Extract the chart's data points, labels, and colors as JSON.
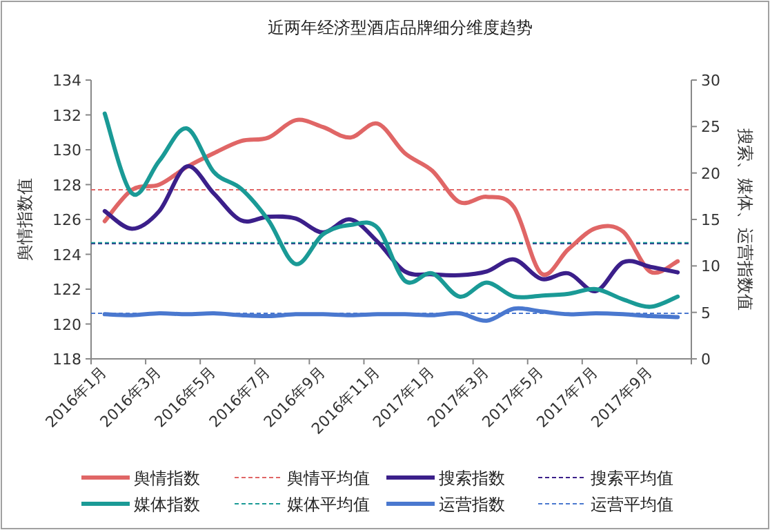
{
  "chart_data": {
    "type": "line",
    "title": "近两年经济型酒店品牌细分维度趋势",
    "ylabel": "舆情指数值",
    "y2label": "搜索、媒体、运营指数值",
    "categories": [
      "2016年1月",
      null,
      "2016年3月",
      null,
      "2016年5月",
      null,
      "2016年7月",
      null,
      "2016年9月",
      null,
      "2016年11月",
      null,
      "2017年1月",
      null,
      "2017年3月",
      null,
      "2017年5月",
      null,
      "2017年7月",
      null,
      "2017年9月",
      null
    ],
    "series": [
      {
        "name": "舆情指数",
        "color": "#e06666",
        "values": [
          125.9,
          127.7,
          128.0,
          129.0,
          129.8,
          130.5,
          130.7,
          131.7,
          131.3,
          130.7,
          131.5,
          129.8,
          128.8,
          127.0,
          127.3,
          126.7,
          122.9,
          124.3,
          125.5,
          125.3,
          123.0,
          123.6
        ]
      },
      {
        "name": "搜索指数",
        "color": "#3b1f8a",
        "axis": "y2",
        "values": [
          15.9,
          14.0,
          15.9,
          20.7,
          17.8,
          14.9,
          15.3,
          15.1,
          13.6,
          15.0,
          12.6,
          9.4,
          9.1,
          9.0,
          9.4,
          10.7,
          8.6,
          9.2,
          7.3,
          10.4,
          9.9,
          9.3
        ]
      },
      {
        "name": "媒体指数",
        "color": "#1a9a96",
        "axis": "y2",
        "values": [
          26.4,
          17.8,
          21.3,
          24.8,
          20.1,
          18.3,
          14.9,
          10.2,
          13.4,
          14.4,
          14.1,
          8.4,
          9.2,
          6.7,
          8.2,
          6.7,
          6.8,
          7.0,
          7.5,
          6.4,
          5.6,
          6.7
        ]
      },
      {
        "name": "运营指数",
        "color": "#4a78cf",
        "axis": "y2",
        "values": [
          4.8,
          4.7,
          4.9,
          4.8,
          4.9,
          4.7,
          4.6,
          4.8,
          4.8,
          4.7,
          4.8,
          4.8,
          4.7,
          4.9,
          4.1,
          5.4,
          5.1,
          4.8,
          4.9,
          4.8,
          4.6,
          4.5
        ]
      }
    ],
    "ref_lines": [
      {
        "axis": "y",
        "value": 127.7,
        "label": "舆情平均值",
        "color": "#e06666",
        "line_style": "dashed"
      },
      {
        "axis": "y2",
        "value": 12.4,
        "label": "搜索平均值",
        "color": "#3b1f8a",
        "line_style": "dashed"
      },
      {
        "axis": "y2",
        "value": 12.5,
        "label": "媒体平均值",
        "color": "#1a9a96",
        "line_style": "dashed"
      },
      {
        "axis": "y2",
        "value": 4.9,
        "label": "运营平均值",
        "color": "#4a78cf",
        "line_style": "dashed"
      }
    ],
    "ylim": [
      118,
      134
    ],
    "yticks": [
      118,
      120,
      122,
      124,
      126,
      128,
      130,
      132,
      134
    ],
    "y2lim": [
      0,
      30
    ],
    "y2ticks": [
      0,
      5,
      10,
      15,
      20,
      25,
      30
    ],
    "grid": false,
    "legend": "bottom",
    "marker": "none",
    "line_style": "solid"
  }
}
